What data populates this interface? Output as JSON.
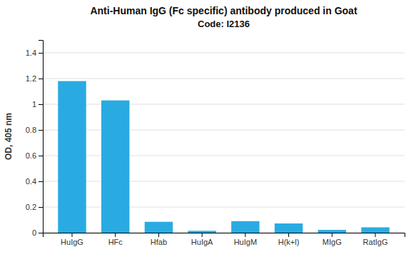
{
  "chart_data": {
    "type": "bar",
    "title": "Anti-Human IgG (Fc specific) antibody produced in Goat",
    "subtitle": "Code: I2136",
    "categories": [
      "HuIgG",
      "HFc",
      "Hfab",
      "HuIgA",
      "HuIgM",
      "H(k+l)",
      "MIgG",
      "RatIgG"
    ],
    "values": [
      1.18,
      1.03,
      0.085,
      0.015,
      0.09,
      0.072,
      0.022,
      0.042
    ],
    "color": "#29ABE2",
    "ylabel": "OD, 405 nm",
    "ylim": [
      0,
      1.5
    ],
    "yticks": [
      0,
      0.2,
      0.4,
      0.6,
      0.8,
      1.0,
      1.2,
      1.4
    ],
    "grid": true
  }
}
